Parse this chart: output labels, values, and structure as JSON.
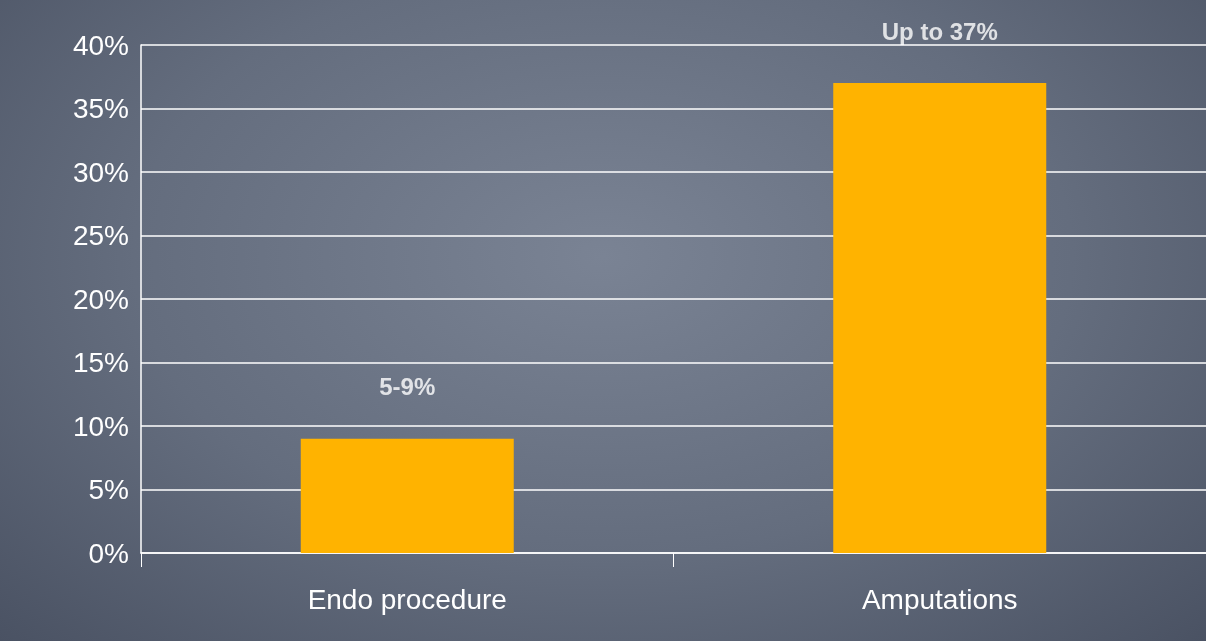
{
  "chart_data": {
    "type": "bar",
    "categories": [
      "Endo procedure",
      "Amputations"
    ],
    "values": [
      9,
      37
    ],
    "annotations": [
      {
        "text": "5-9%",
        "x": "Endo procedure",
        "y": 9
      },
      {
        "text": "Up to 37%",
        "x": "Amputations",
        "y": 37
      }
    ],
    "color": "#ffb300",
    "ylim": [
      0,
      40
    ],
    "yticks": [
      {
        "value": 0,
        "label": "0%"
      },
      {
        "value": 5,
        "label": "5%"
      },
      {
        "value": 10,
        "label": "10%"
      },
      {
        "value": 15,
        "label": "15%"
      },
      {
        "value": 20,
        "label": "20%"
      },
      {
        "value": 25,
        "label": "25%"
      },
      {
        "value": 30,
        "label": "30%"
      },
      {
        "value": 35,
        "label": "35%"
      },
      {
        "value": 40,
        "label": "40%"
      }
    ],
    "grid": true
  }
}
